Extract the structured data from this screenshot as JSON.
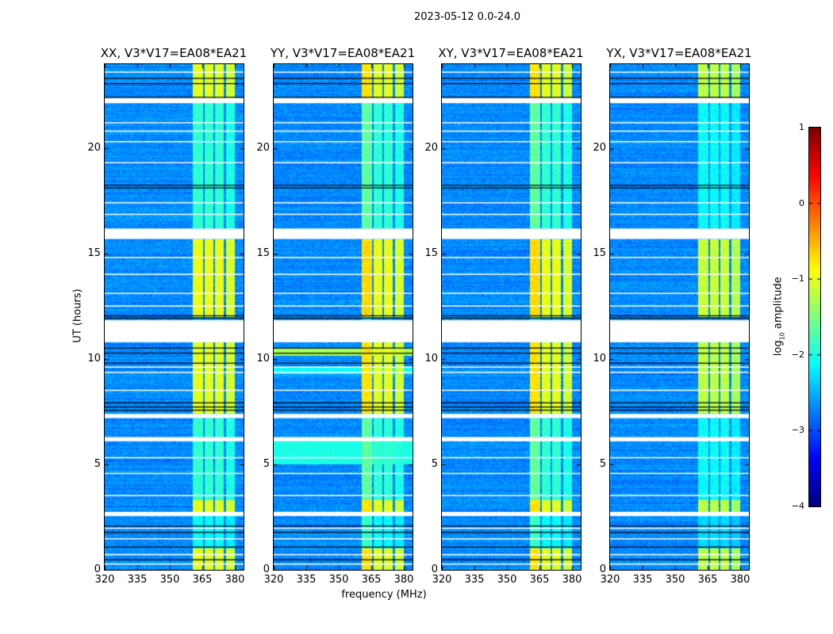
{
  "chart_data": {
    "type": "heatmap",
    "title": "2023-05-12 0.0-24.0",
    "xlabel": "frequency (MHz)",
    "ylabel": "UT (hours)",
    "xlim": [
      320,
      384
    ],
    "ylim": [
      0,
      24
    ],
    "xticks": [
      "320",
      "335",
      "350",
      "365",
      "380"
    ],
    "xtick_values": [
      320,
      335,
      350,
      365,
      380
    ],
    "yticks": [
      "0",
      "5",
      "10",
      "15",
      "20"
    ],
    "ytick_values": [
      0,
      5,
      10,
      15,
      20
    ],
    "panels": [
      {
        "title": "XX, V3*V17=EA08*EA21",
        "extra_broadband": []
      },
      {
        "title": "YY, V3*V17=EA08*EA21",
        "extra_broadband": [
          {
            "hours": [
              5.0,
              6.1
            ],
            "log10": -2.0
          },
          {
            "hours": [
              10.15,
              10.5
            ],
            "log10": -1.3
          },
          {
            "hours": [
              9.3,
              9.6
            ],
            "log10": -2.1
          }
        ]
      },
      {
        "title": "XY, V3*V17=EA08*EA21",
        "extra_broadband": []
      },
      {
        "title": "YX, V3*V17=EA08*EA21",
        "extra_broadband": []
      }
    ],
    "colorbar": {
      "label_prefix": "log",
      "label_sub": "10",
      "label_suffix": " amplitude",
      "range": [
        -4,
        1
      ],
      "ticks": [
        "1",
        "0",
        "−1",
        "−2",
        "−3",
        "−4"
      ],
      "tick_values": [
        1,
        0,
        -1,
        -2,
        -3,
        -4
      ],
      "colormap": "jet"
    },
    "background_log10": -2.7,
    "rfi_channels_mhz": [
      [
        360.5,
        365.3
      ],
      [
        366.0,
        370.0
      ],
      [
        370.7,
        375.0
      ],
      [
        375.8,
        380.1
      ]
    ],
    "band_levels": [
      {
        "hours": [
          22.4,
          24.0
        ],
        "log10": -1.0
      },
      {
        "hours": [
          16.2,
          22.2
        ],
        "log10": -1.9
      },
      {
        "hours": [
          12.0,
          15.7
        ],
        "log10": -0.95
      },
      {
        "hours": [
          7.4,
          10.8
        ],
        "log10": -1.0
      },
      {
        "hours": [
          3.3,
          7.2
        ],
        "log10": -1.9
      },
      {
        "hours": [
          2.75,
          3.3
        ],
        "log10": -1.0
      },
      {
        "hours": [
          1.0,
          2.55
        ],
        "log10": -2.1
      },
      {
        "hours": [
          0.0,
          1.0
        ],
        "log10": -1.0
      }
    ],
    "flagged_hours": [
      [
        10.8,
        11.85
      ],
      [
        22.15,
        22.4
      ],
      [
        15.7,
        16.2
      ],
      [
        7.2,
        7.4
      ],
      [
        6.1,
        6.3
      ],
      [
        2.55,
        2.75
      ],
      [
        23.6,
        23.65
      ],
      [
        21.2,
        21.25
      ],
      [
        20.8,
        20.85
      ],
      [
        20.3,
        20.35
      ],
      [
        19.3,
        19.35
      ],
      [
        17.4,
        17.45
      ],
      [
        16.85,
        16.9
      ],
      [
        14.8,
        14.85
      ],
      [
        14.0,
        14.05
      ],
      [
        13.1,
        13.15
      ],
      [
        12.5,
        12.55
      ],
      [
        9.6,
        9.65
      ],
      [
        9.35,
        9.4
      ],
      [
        8.5,
        8.55
      ],
      [
        5.3,
        5.35
      ],
      [
        4.55,
        4.6
      ],
      [
        3.5,
        3.55
      ],
      [
        1.95,
        2.0
      ],
      [
        1.45,
        1.5
      ],
      [
        0.7,
        0.75
      ],
      [
        0.25,
        0.3
      ]
    ],
    "dropout_hours": [
      23.35,
      23.1,
      22.45,
      18.27,
      18.15,
      12.08,
      11.97,
      10.55,
      10.3,
      9.83,
      7.95,
      7.75,
      7.6,
      2.1,
      1.8,
      1.1,
      0.5
    ]
  }
}
